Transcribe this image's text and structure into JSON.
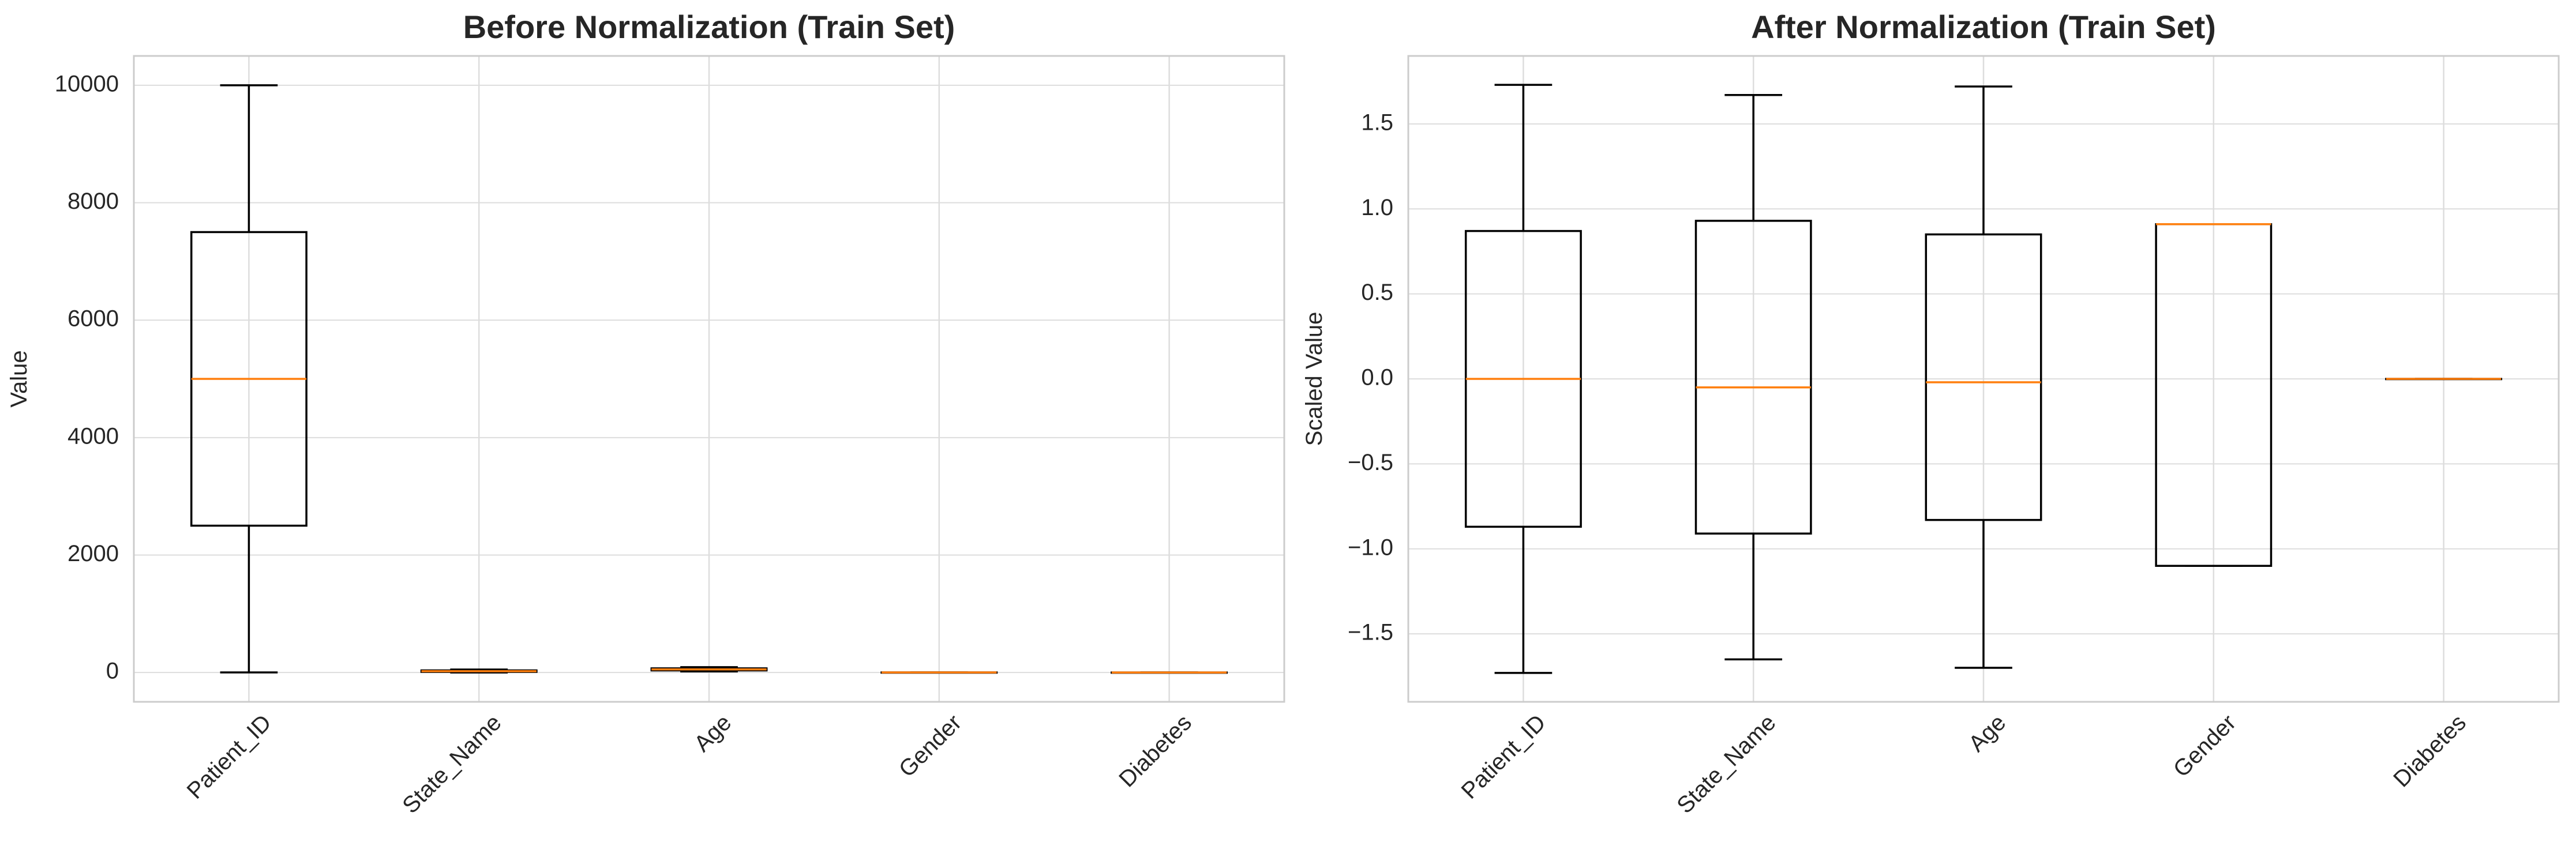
{
  "chart_data": [
    {
      "type": "box",
      "title": "Before Normalization (Train Set)",
      "xlabel": "",
      "ylabel": "Value",
      "categories": [
        "Patient_ID",
        "State_Name",
        "Age",
        "Gender",
        "Diabetes"
      ],
      "ylim": [
        -500,
        10500
      ],
      "yticks": [
        0,
        2000,
        4000,
        6000,
        8000,
        10000
      ],
      "ytick_labels": [
        "0",
        "2000",
        "4000",
        "6000",
        "8000",
        "10000"
      ],
      "boxes": [
        {
          "whislo": 1,
          "q1": 2500,
          "med": 5000,
          "q3": 7500,
          "whishi": 10000
        },
        {
          "whislo": 0,
          "q1": 10,
          "med": 22,
          "q3": 35,
          "whishi": 50
        },
        {
          "whislo": 18,
          "q1": 35,
          "med": 52,
          "q3": 70,
          "whishi": 90
        },
        {
          "whislo": 0,
          "q1": 0,
          "med": 1,
          "q3": 1,
          "whishi": 1
        },
        {
          "whislo": 0,
          "q1": 0,
          "med": 0,
          "q3": 0,
          "whishi": 0
        }
      ],
      "grid": true,
      "colors": {
        "box": "#000000",
        "median": "#ff7f0e",
        "grid": "#dddddd",
        "axes": "#cccccc"
      }
    },
    {
      "type": "box",
      "title": "After Normalization (Train Set)",
      "xlabel": "",
      "ylabel": "Scaled Value",
      "categories": [
        "Patient_ID",
        "State_Name",
        "Age",
        "Gender",
        "Diabetes"
      ],
      "ylim": [
        -1.9,
        1.9
      ],
      "yticks": [
        -1.5,
        -1.0,
        -0.5,
        0.0,
        0.5,
        1.0,
        1.5
      ],
      "ytick_labels": [
        "−1.5",
        "−1.0",
        "−0.5",
        "0.0",
        "0.5",
        "1.0",
        "1.5"
      ],
      "boxes": [
        {
          "whislo": -1.73,
          "q1": -0.87,
          "med": 0.0,
          "q3": 0.87,
          "whishi": 1.73
        },
        {
          "whislo": -1.65,
          "q1": -0.91,
          "med": -0.05,
          "q3": 0.93,
          "whishi": 1.67
        },
        {
          "whislo": -1.7,
          "q1": -0.83,
          "med": -0.02,
          "q3": 0.85,
          "whishi": 1.72
        },
        {
          "whislo": -1.1,
          "q1": -1.1,
          "med": 0.91,
          "q3": 0.91,
          "whishi": 0.91
        },
        {
          "whislo": 0.0,
          "q1": 0.0,
          "med": 0.0,
          "q3": 0.0,
          "whishi": 0.0
        }
      ],
      "grid": true,
      "colors": {
        "box": "#000000",
        "median": "#ff7f0e",
        "grid": "#dddddd",
        "axes": "#cccccc"
      }
    }
  ]
}
